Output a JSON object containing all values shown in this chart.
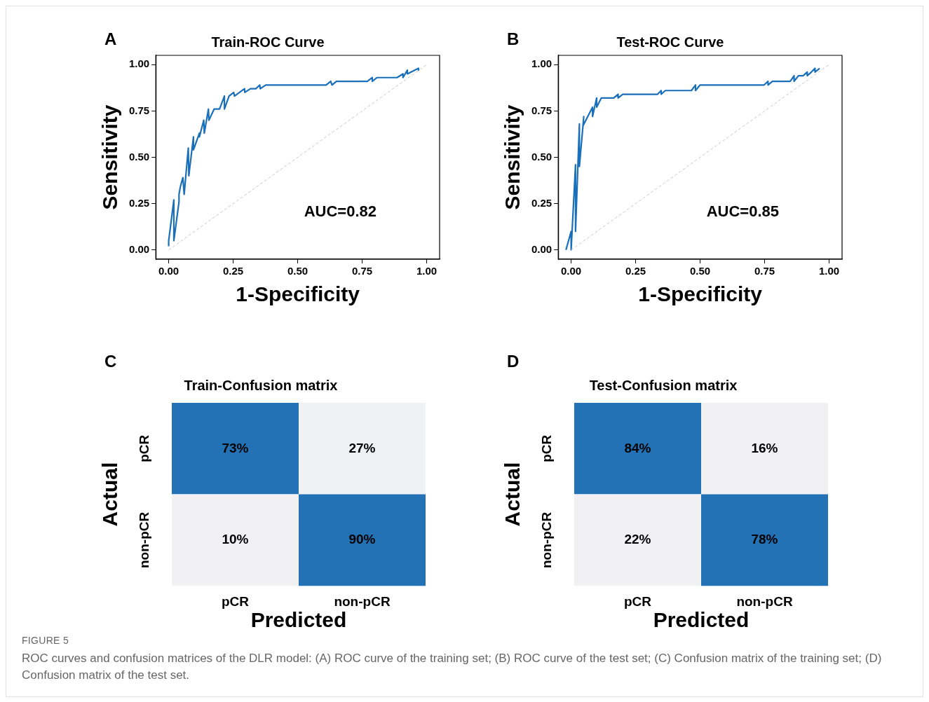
{
  "chart_data": [
    {
      "type": "line",
      "title": "Train-ROC Curve",
      "xlabel": "1-Specificity",
      "ylabel": "Sensitivity",
      "annotations": [
        "A",
        "AUC=0.82"
      ],
      "xlim": [
        -0.05,
        1.05
      ],
      "ylim": [
        -0.05,
        1.05
      ],
      "xticks": [
        {
          "value": 0,
          "label": "0.00"
        },
        {
          "value": 0.25,
          "label": "0.25"
        },
        {
          "value": 0.5,
          "label": "0.50"
        },
        {
          "value": 0.75,
          "label": "0.75"
        },
        {
          "value": 1,
          "label": "1.00"
        }
      ],
      "yticks": [
        {
          "value": 0,
          "label": "0.00"
        },
        {
          "value": 0.25,
          "label": "0.25"
        },
        {
          "value": 0.5,
          "label": "0.50"
        },
        {
          "value": 0.75,
          "label": "0.75"
        },
        {
          "value": 1,
          "label": "1.00"
        }
      ],
      "grid": false,
      "legend": false,
      "marker": "none",
      "series": [
        {
          "color": "#1a6fba",
          "x": [
            0,
            0,
            0.02,
            0.02,
            0.04,
            0.04,
            0.045,
            0.055,
            0.06,
            0.076,
            0.078,
            0.096,
            0.096,
            0.119,
            0.119,
            0.136,
            0.138,
            0.154,
            0.156,
            0.176,
            0.197,
            0.216,
            0.216,
            0.234,
            0.252,
            0.255,
            0.294,
            0.295,
            0.317,
            0.338,
            0.353,
            0.355,
            0.376,
            0.61,
            0.628,
            0.633,
            0.65,
            0.77,
            0.789,
            0.789,
            0.807,
            0.885,
            0.908,
            0.908,
            0.925,
            0.925,
            0.968,
            0.968
          ],
          "values": [
            0.02,
            0.05,
            0.27,
            0.05,
            0.26,
            0.3,
            0.34,
            0.39,
            0.3,
            0.55,
            0.4,
            0.61,
            0.54,
            0.63,
            0.61,
            0.7,
            0.63,
            0.76,
            0.7,
            0.76,
            0.76,
            0.83,
            0.76,
            0.83,
            0.85,
            0.83,
            0.87,
            0.85,
            0.87,
            0.87,
            0.89,
            0.87,
            0.89,
            0.89,
            0.91,
            0.89,
            0.91,
            0.91,
            0.93,
            0.91,
            0.93,
            0.93,
            0.95,
            0.93,
            0.97,
            0.95,
            0.98,
            0.97
          ]
        },
        {
          "type": "line",
          "color": "#c8c8c8",
          "line_style": "dashed",
          "x": [
            0,
            1
          ],
          "values": [
            0,
            1
          ]
        }
      ]
    },
    {
      "type": "line",
      "title": "Test-ROC Curve",
      "xlabel": "1-Specificity",
      "ylabel": "Sensitivity",
      "annotations": [
        "B",
        "AUC=0.85"
      ],
      "xlim": [
        -0.05,
        1.05
      ],
      "ylim": [
        -0.05,
        1.05
      ],
      "xticks": [
        {
          "value": 0,
          "label": "0.00"
        },
        {
          "value": 0.25,
          "label": "0.25"
        },
        {
          "value": 0.5,
          "label": "0.50"
        },
        {
          "value": 0.75,
          "label": "0.75"
        },
        {
          "value": 1,
          "label": "1.00"
        }
      ],
      "yticks": [
        {
          "value": 0,
          "label": "0.00"
        },
        {
          "value": 0.25,
          "label": "0.25"
        },
        {
          "value": 0.5,
          "label": "0.50"
        },
        {
          "value": 0.75,
          "label": "0.75"
        },
        {
          "value": 1,
          "label": "1.00"
        }
      ],
      "grid": false,
      "legend": false,
      "marker": "none",
      "series": [
        {
          "color": "#1a6fba",
          "x": [
            -0.02,
            0,
            0,
            0.017,
            0.017,
            0.032,
            0.032,
            0.049,
            0.046,
            0.083,
            0.083,
            0.099,
            0.099,
            0.117,
            0.165,
            0.182,
            0.182,
            0.2,
            0.335,
            0.349,
            0.349,
            0.365,
            0.466,
            0.482,
            0.482,
            0.5,
            0.748,
            0.763,
            0.763,
            0.78,
            0.849,
            0.864,
            0.864,
            0.881,
            0.899,
            0.915,
            0.915,
            0.931,
            0.945,
            0.945,
            0.963
          ],
          "values": [
            0,
            0.1,
            0,
            0.46,
            0.1,
            0.68,
            0.45,
            0.72,
            0.67,
            0.77,
            0.72,
            0.82,
            0.77,
            0.82,
            0.82,
            0.84,
            0.82,
            0.84,
            0.84,
            0.86,
            0.84,
            0.86,
            0.86,
            0.89,
            0.86,
            0.89,
            0.89,
            0.91,
            0.89,
            0.91,
            0.91,
            0.94,
            0.91,
            0.94,
            0.94,
            0.96,
            0.94,
            0.96,
            0.98,
            0.96,
            0.98
          ]
        },
        {
          "type": "line",
          "color": "#c8c8c8",
          "line_style": "dashed",
          "x": [
            0,
            1
          ],
          "values": [
            0,
            1
          ]
        }
      ]
    },
    {
      "type": "heatmap",
      "title": "Train-Confusion matrix",
      "xlabel": "Predicted",
      "ylabel": "Actual",
      "annotations": [
        "C"
      ],
      "categories": [
        "pCR",
        "non-pCR"
      ],
      "y_categories": [
        "pCR",
        "non-pCR"
      ],
      "cells": [
        [
          73,
          27
        ],
        [
          10,
          90
        ]
      ],
      "cell_labels": [
        [
          "73%",
          "27%"
        ],
        [
          "10%",
          "90%"
        ]
      ]
    },
    {
      "type": "heatmap",
      "title": "Test-Confusion matrix",
      "xlabel": "Predicted",
      "ylabel": "Actual",
      "annotations": [
        "D",
        "FIGURE 5",
        "ROC curves and confusion matrices of the DLR model: (A) ROC curve of the training set; (B) ROC curve of the test set; (C) Confusion matrix of the training set; (D) Confusion matrix of the test set."
      ],
      "categories": [
        "pCR",
        "non-pCR"
      ],
      "y_categories": [
        "pCR",
        "non-pCR"
      ],
      "cells": [
        [
          84,
          16
        ],
        [
          22,
          78
        ]
      ],
      "cell_labels": [
        [
          "84%",
          "16%"
        ],
        [
          "22%",
          "78%"
        ]
      ]
    }
  ]
}
